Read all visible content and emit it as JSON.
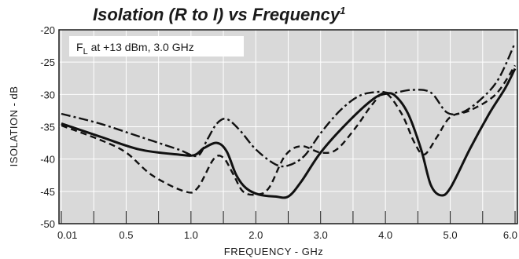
{
  "chart_data": {
    "type": "line",
    "title": "Isolation (R to I) vs Frequency",
    "title_superscript": "1",
    "xlabel": "FREQUENCY - GHz",
    "ylabel": "ISOLATION - dB",
    "ylim": [
      -50,
      -20
    ],
    "xlim": [
      0.01,
      6.0
    ],
    "x_ticks": [
      {
        "value": 0.01,
        "label": "0.01"
      },
      {
        "value": 0.5,
        "label": "0.5"
      },
      {
        "value": 1.0,
        "label": "1.0"
      },
      {
        "value": 2.0,
        "label": "2.0"
      },
      {
        "value": 3.0,
        "label": "3.0"
      },
      {
        "value": 4.0,
        "label": "4.0"
      },
      {
        "value": 5.0,
        "label": "5.0"
      },
      {
        "value": 6.0,
        "label": "6.0"
      }
    ],
    "y_ticks": [
      -20,
      -25,
      -30,
      -35,
      -40,
      -45,
      -50
    ],
    "grid": true,
    "annotation": {
      "prefix": "F",
      "subscript": "L",
      "text": " at +13 dBm, 3.0 GHz"
    },
    "colors": {
      "plot_background": "#d9d9d9",
      "grid": "#ffffff",
      "frame": "#1a1a1a",
      "line": "#111111"
    },
    "series": [
      {
        "style": "solid",
        "points": [
          [
            0.01,
            -34.5
          ],
          [
            0.3,
            -36.5
          ],
          [
            0.6,
            -38.5
          ],
          [
            0.9,
            -39.3
          ],
          [
            1.05,
            -39.4
          ],
          [
            1.2,
            -38.3
          ],
          [
            1.4,
            -37.5
          ],
          [
            1.55,
            -38.8
          ],
          [
            1.7,
            -42.5
          ],
          [
            1.85,
            -44.5
          ],
          [
            2.05,
            -45.5
          ],
          [
            2.3,
            -45.8
          ],
          [
            2.5,
            -45.8
          ],
          [
            2.7,
            -43.5
          ],
          [
            3.0,
            -39.0
          ],
          [
            3.4,
            -34.5
          ],
          [
            3.8,
            -30.8
          ],
          [
            4.0,
            -29.9
          ],
          [
            4.15,
            -30.2
          ],
          [
            4.35,
            -33.0
          ],
          [
            4.55,
            -38.5
          ],
          [
            4.7,
            -44.0
          ],
          [
            4.85,
            -45.6
          ],
          [
            5.0,
            -44.5
          ],
          [
            5.3,
            -38.5
          ],
          [
            5.6,
            -33.0
          ],
          [
            5.85,
            -29.0
          ],
          [
            6.0,
            -26.0
          ]
        ]
      },
      {
        "style": "dashed",
        "points": [
          [
            0.01,
            -34.8
          ],
          [
            0.3,
            -37.0
          ],
          [
            0.5,
            -39.0
          ],
          [
            0.7,
            -42.5
          ],
          [
            0.95,
            -45.0
          ],
          [
            1.1,
            -44.5
          ],
          [
            1.35,
            -40.0
          ],
          [
            1.5,
            -39.8
          ],
          [
            1.65,
            -42.3
          ],
          [
            1.8,
            -45.0
          ],
          [
            2.0,
            -45.5
          ],
          [
            2.2,
            -44.5
          ],
          [
            2.45,
            -39.5
          ],
          [
            2.7,
            -38.0
          ],
          [
            3.0,
            -39.0
          ],
          [
            3.25,
            -38.5
          ],
          [
            3.55,
            -35.0
          ],
          [
            3.8,
            -31.5
          ],
          [
            4.0,
            -29.8
          ],
          [
            4.25,
            -33.0
          ],
          [
            4.45,
            -37.5
          ],
          [
            4.6,
            -39.3
          ],
          [
            4.8,
            -36.5
          ],
          [
            5.0,
            -33.5
          ],
          [
            5.3,
            -32.5
          ],
          [
            5.7,
            -30.0
          ],
          [
            6.0,
            -25.5
          ]
        ]
      },
      {
        "style": "dash-dot",
        "points": [
          [
            0.01,
            -33.0
          ],
          [
            0.3,
            -34.5
          ],
          [
            0.6,
            -36.5
          ],
          [
            0.9,
            -38.5
          ],
          [
            1.1,
            -39.5
          ],
          [
            1.25,
            -37.0
          ],
          [
            1.4,
            -34.5
          ],
          [
            1.55,
            -33.8
          ],
          [
            1.75,
            -35.5
          ],
          [
            2.0,
            -38.5
          ],
          [
            2.3,
            -40.8
          ],
          [
            2.5,
            -41.0
          ],
          [
            2.75,
            -39.5
          ],
          [
            3.0,
            -36.0
          ],
          [
            3.3,
            -32.5
          ],
          [
            3.6,
            -30.2
          ],
          [
            3.9,
            -29.6
          ],
          [
            4.1,
            -29.8
          ],
          [
            4.4,
            -29.3
          ],
          [
            4.7,
            -29.7
          ],
          [
            4.95,
            -32.8
          ],
          [
            5.2,
            -32.7
          ],
          [
            5.5,
            -30.5
          ],
          [
            5.75,
            -27.5
          ],
          [
            6.0,
            -22.0
          ]
        ]
      }
    ]
  }
}
